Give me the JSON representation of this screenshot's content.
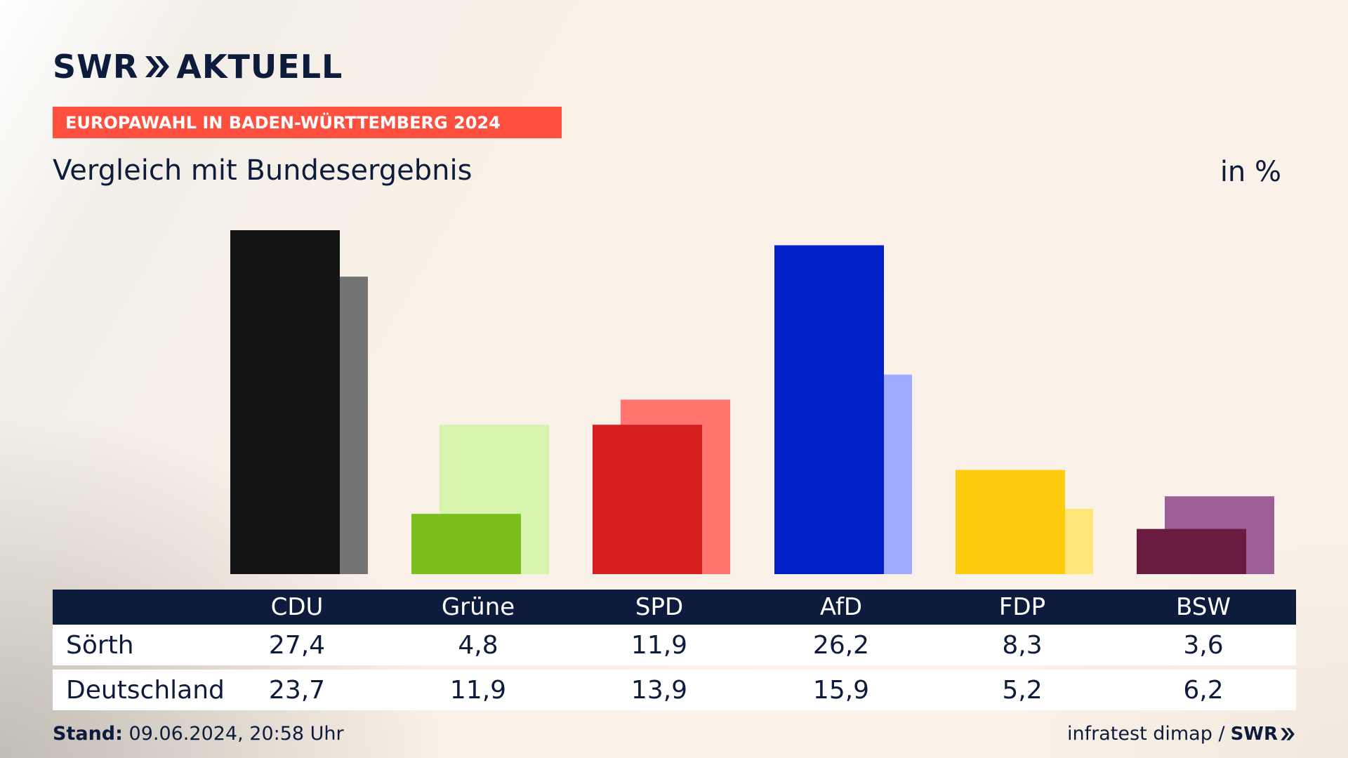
{
  "header": {
    "logo_text": "SWR",
    "logo_suffix": "AKTUELL",
    "banner": "EUROPAWAHL IN BADEN-WÜRTTEMBERG 2024",
    "subtitle": "Vergleich mit Bundesergebnis",
    "unit": "in %"
  },
  "colors": {
    "text": "#0d1b3d",
    "banner": "#ff4f3f",
    "table_header": "#0d1b3d",
    "CDU": [
      "#141414",
      "#737373"
    ],
    "Grüne": [
      "#7abf1c",
      "#d6f4ab"
    ],
    "SPD": [
      "#d71f20",
      "#ff7570"
    ],
    "AfD": [
      "#0021c8",
      "#9eabff"
    ],
    "FDP": [
      "#ffcc0d",
      "#ffe57a"
    ],
    "BSW": [
      "#6b1a40",
      "#9b5f96"
    ]
  },
  "chart_data": {
    "type": "bar",
    "categories": [
      "CDU",
      "Grüne",
      "SPD",
      "AfD",
      "FDP",
      "BSW"
    ],
    "series": [
      {
        "name": "Sörth",
        "values": [
          27.4,
          4.8,
          11.9,
          26.2,
          8.3,
          3.6
        ]
      },
      {
        "name": "Deutschland",
        "values": [
          23.7,
          11.9,
          13.9,
          15.9,
          5.2,
          6.2
        ]
      }
    ],
    "ylim": [
      0,
      27.4
    ],
    "grid": false
  },
  "table": {
    "parties": [
      "CDU",
      "Grüne",
      "SPD",
      "AfD",
      "FDP",
      "BSW"
    ],
    "rows": [
      {
        "label": "Sörth",
        "values": [
          "27,4",
          "4,8",
          "11,9",
          "26,2",
          "8,3",
          "3,6"
        ]
      },
      {
        "label": "Deutschland",
        "values": [
          "23,7",
          "11,9",
          "13,9",
          "15,9",
          "5,2",
          "6,2"
        ]
      }
    ]
  },
  "footer": {
    "stand_label": "Stand:",
    "stand_value": "09.06.2024, 20:58 Uhr",
    "source": "infratest dimap /",
    "source_logo": "SWR"
  }
}
